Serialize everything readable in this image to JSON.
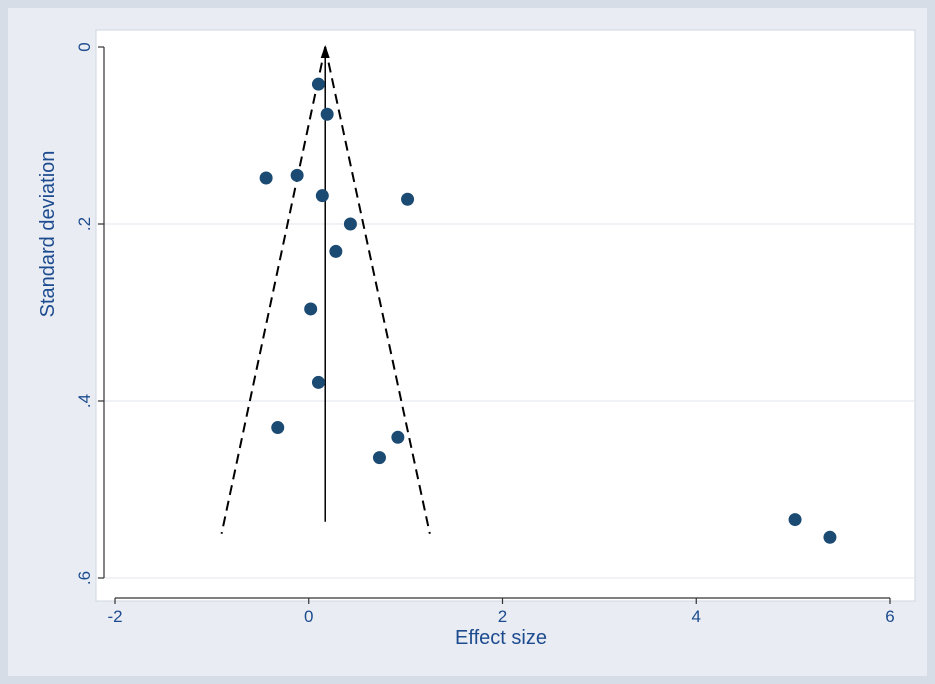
{
  "chart_data": {
    "type": "scatter",
    "title": "",
    "xlabel": "Effect size",
    "ylabel": "Standard deviation",
    "xlim": [
      -2,
      6
    ],
    "ylim": [
      0,
      0.6
    ],
    "y_axis_inverted": true,
    "x_ticks": [
      {
        "value": -2,
        "label": "-2"
      },
      {
        "value": 0,
        "label": "0"
      },
      {
        "value": 2,
        "label": "2"
      },
      {
        "value": 4,
        "label": "4"
      },
      {
        "value": 6,
        "label": "6"
      }
    ],
    "y_ticks": [
      {
        "value": 0,
        "label": "0"
      },
      {
        "value": 0.2,
        "label": ".2"
      },
      {
        "value": 0.4,
        "label": ".4"
      },
      {
        "value": 0.6,
        "label": ".6"
      }
    ],
    "grid": "horizontal",
    "pooled_effect": 0.17,
    "funnel_ci": {
      "apex_se": 0,
      "base_se": 0.55,
      "left_x": -0.9,
      "right_x": 1.25
    },
    "points": [
      {
        "x": 0.1,
        "y": 0.042
      },
      {
        "x": 0.19,
        "y": 0.076
      },
      {
        "x": -0.44,
        "y": 0.148
      },
      {
        "x": -0.12,
        "y": 0.145
      },
      {
        "x": 0.14,
        "y": 0.168
      },
      {
        "x": 1.02,
        "y": 0.172
      },
      {
        "x": 0.43,
        "y": 0.2
      },
      {
        "x": 0.28,
        "y": 0.231
      },
      {
        "x": 0.02,
        "y": 0.296
      },
      {
        "x": 0.1,
        "y": 0.379
      },
      {
        "x": -0.32,
        "y": 0.43
      },
      {
        "x": 0.92,
        "y": 0.441
      },
      {
        "x": 0.73,
        "y": 0.464
      },
      {
        "x": 5.02,
        "y": 0.534
      },
      {
        "x": 5.38,
        "y": 0.554
      }
    ],
    "colors": {
      "marker": "#1b4a72",
      "axis_text": "#1d4b8f",
      "plot_bg": "#ffffff",
      "outer_bg": "#e9edf3",
      "grid": "#e6eaf0"
    }
  }
}
